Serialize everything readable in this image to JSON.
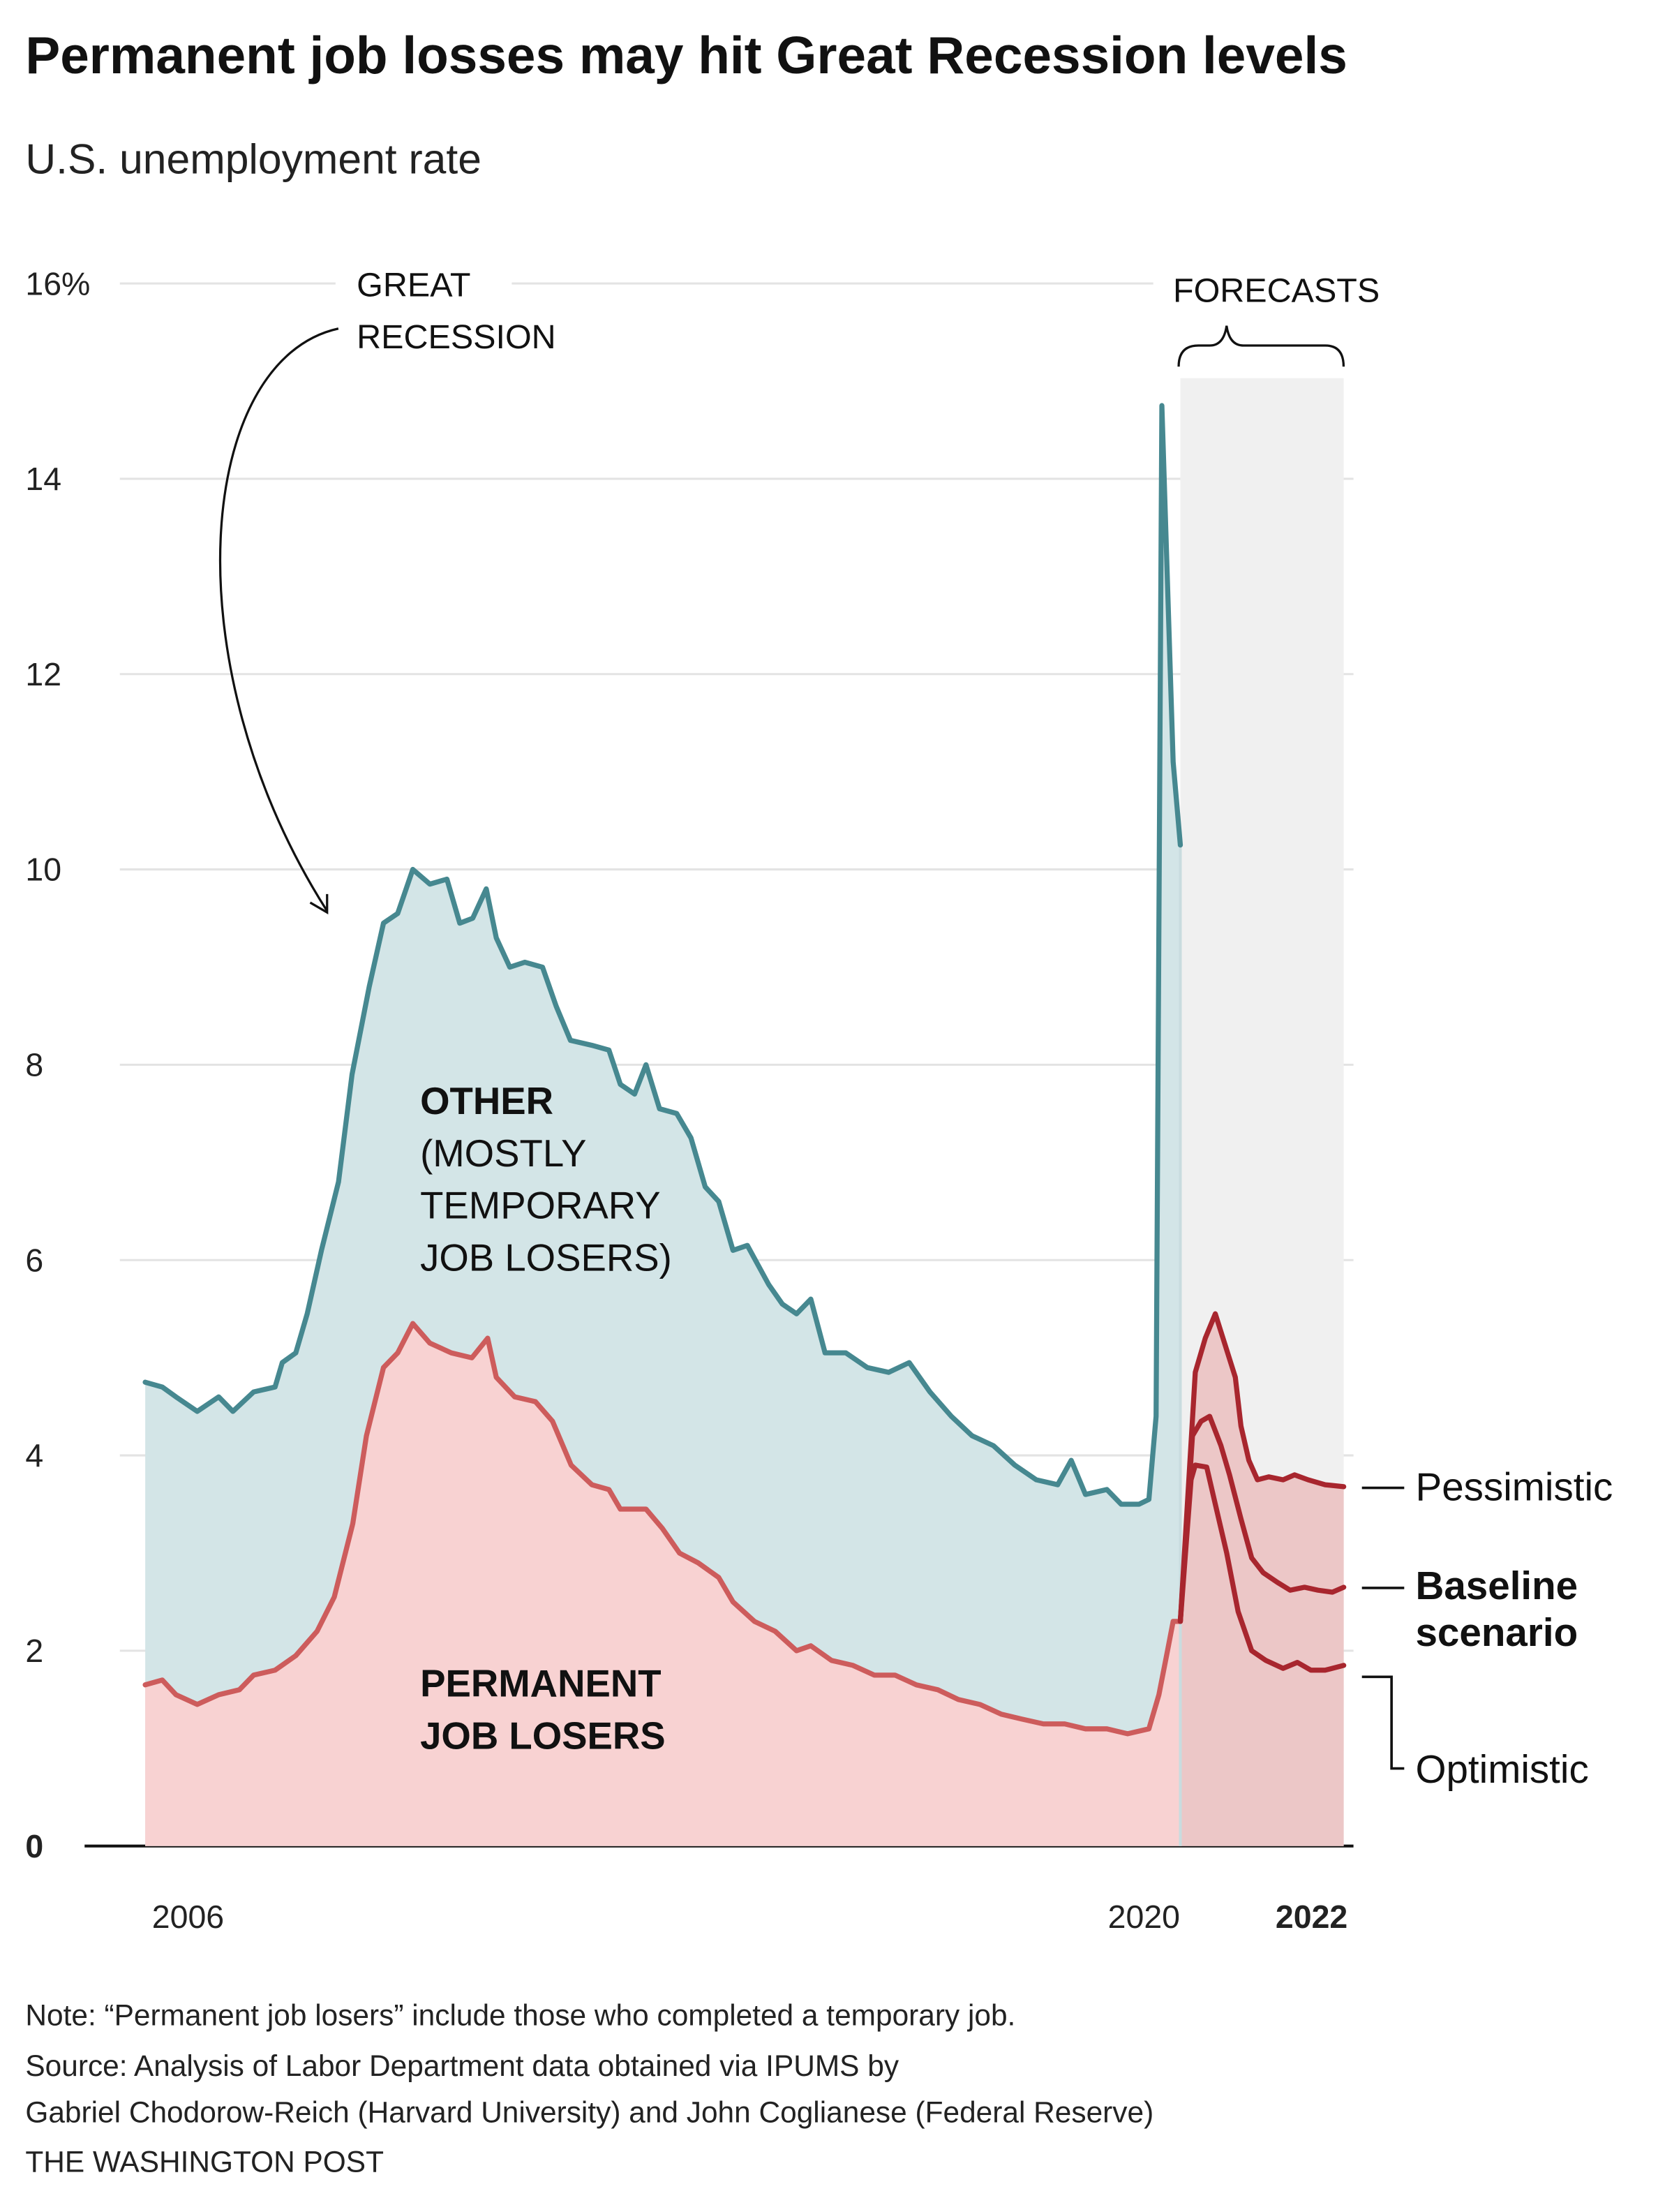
{
  "title": "Permanent job losses may hit Great Recession levels",
  "subtitle": "U.S. unemployment rate",
  "annotations": {
    "great_recession": [
      "GREAT",
      "RECESSION"
    ],
    "forecasts": "FORECASTS",
    "other": [
      "OTHER",
      "(MOSTLY",
      "TEMPORARY",
      "JOB LOSERS)"
    ],
    "permanent": [
      "PERMANENT",
      "JOB LOSERS"
    ],
    "pessimistic": "Pessimistic",
    "baseline": [
      "Baseline",
      "scenario"
    ],
    "optimistic": "Optimistic"
  },
  "notes": {
    "note": "Note: “Permanent job losers” include those who completed a temporary job.",
    "source_1": "Source: Analysis of Labor Department data obtained via IPUMS by",
    "source_2": "Gabriel Chodorow-Reich (Harvard University) and John Coglianese (Federal Reserve)",
    "credit": "THE WASHINGTON POST"
  },
  "colors": {
    "other_line": "#468890",
    "other_fill": "#d3e5e7",
    "permanent_line": "#cd5c5c",
    "permanent_fill": "#f8d2d2",
    "forecast_line": "#a8262e",
    "forecast_fill": "#ecc7c7",
    "forecast_band": "#f0f0f0"
  },
  "chart_data": {
    "type": "area",
    "title": "Permanent job losses may hit Great Recession levels",
    "ylabel": "U.S. unemployment rate (%)",
    "ylim": [
      0,
      16
    ],
    "xlim": [
      2006,
      2022.8
    ],
    "yticks": [
      "0",
      "2",
      "4",
      "6",
      "8",
      "10",
      "12",
      "14",
      "16%"
    ],
    "ytick_values": [
      0,
      2,
      4,
      6,
      8,
      10,
      12,
      14,
      16
    ],
    "xticks": [
      {
        "label": "2006",
        "year": 2006
      },
      {
        "label": "2020",
        "year": 2020
      },
      {
        "label": "2022",
        "year": 2022,
        "bold": true
      }
    ],
    "grid": true,
    "forecast_range": [
      2020.51,
      2022.8
    ],
    "series": [
      {
        "name": "Total (Other, mostly temporary job losers, stacked on top)",
        "points": [
          [
            2006.0,
            4.75
          ],
          [
            2006.24,
            4.7
          ],
          [
            2006.43,
            4.6
          ],
          [
            2006.73,
            4.45
          ],
          [
            2007.03,
            4.6
          ],
          [
            2007.23,
            4.45
          ],
          [
            2007.52,
            4.65
          ],
          [
            2007.82,
            4.7
          ],
          [
            2007.92,
            4.95
          ],
          [
            2008.11,
            5.05
          ],
          [
            2008.27,
            5.45
          ],
          [
            2008.47,
            6.1
          ],
          [
            2008.71,
            6.8
          ],
          [
            2008.9,
            7.9
          ],
          [
            2009.14,
            8.8
          ],
          [
            2009.34,
            9.45
          ],
          [
            2009.54,
            9.55
          ],
          [
            2009.75,
            10.0
          ],
          [
            2009.99,
            9.85
          ],
          [
            2010.23,
            9.9
          ],
          [
            2010.41,
            9.45
          ],
          [
            2010.59,
            9.5
          ],
          [
            2010.78,
            9.8
          ],
          [
            2010.92,
            9.3
          ],
          [
            2011.11,
            9.0
          ],
          [
            2011.32,
            9.05
          ],
          [
            2011.57,
            9.0
          ],
          [
            2011.76,
            8.6
          ],
          [
            2011.96,
            8.25
          ],
          [
            2012.26,
            8.2
          ],
          [
            2012.5,
            8.15
          ],
          [
            2012.66,
            7.8
          ],
          [
            2012.86,
            7.7
          ],
          [
            2013.02,
            8.0
          ],
          [
            2013.21,
            7.55
          ],
          [
            2013.45,
            7.5
          ],
          [
            2013.65,
            7.25
          ],
          [
            2013.85,
            6.75
          ],
          [
            2014.04,
            6.6
          ],
          [
            2014.24,
            6.1
          ],
          [
            2014.44,
            6.15
          ],
          [
            2014.74,
            5.75
          ],
          [
            2014.93,
            5.55
          ],
          [
            2015.13,
            5.45
          ],
          [
            2015.33,
            5.6
          ],
          [
            2015.53,
            5.05
          ],
          [
            2015.82,
            5.05
          ],
          [
            2016.12,
            4.9
          ],
          [
            2016.42,
            4.85
          ],
          [
            2016.71,
            4.95
          ],
          [
            2017.0,
            4.65
          ],
          [
            2017.3,
            4.4
          ],
          [
            2017.59,
            4.2
          ],
          [
            2017.89,
            4.1
          ],
          [
            2018.19,
            3.9
          ],
          [
            2018.49,
            3.75
          ],
          [
            2018.79,
            3.7
          ],
          [
            2018.98,
            3.95
          ],
          [
            2019.18,
            3.6
          ],
          [
            2019.48,
            3.65
          ],
          [
            2019.68,
            3.5
          ],
          [
            2019.93,
            3.5
          ],
          [
            2020.07,
            3.55
          ],
          [
            2020.17,
            4.4
          ],
          [
            2020.25,
            14.75
          ],
          [
            2020.41,
            11.1
          ],
          [
            2020.51,
            10.25
          ]
        ]
      },
      {
        "name": "Permanent job losers",
        "points": [
          [
            2006.0,
            1.65
          ],
          [
            2006.24,
            1.7
          ],
          [
            2006.43,
            1.55
          ],
          [
            2006.73,
            1.45
          ],
          [
            2007.03,
            1.55
          ],
          [
            2007.32,
            1.6
          ],
          [
            2007.52,
            1.75
          ],
          [
            2007.82,
            1.8
          ],
          [
            2008.11,
            1.95
          ],
          [
            2008.41,
            2.2
          ],
          [
            2008.65,
            2.55
          ],
          [
            2008.91,
            3.3
          ],
          [
            2009.1,
            4.2
          ],
          [
            2009.34,
            4.9
          ],
          [
            2009.54,
            5.05
          ],
          [
            2009.75,
            5.35
          ],
          [
            2009.99,
            5.15
          ],
          [
            2010.29,
            5.05
          ],
          [
            2010.58,
            5.0
          ],
          [
            2010.8,
            5.2
          ],
          [
            2010.92,
            4.8
          ],
          [
            2011.18,
            4.6
          ],
          [
            2011.47,
            4.55
          ],
          [
            2011.71,
            4.35
          ],
          [
            2011.97,
            3.9
          ],
          [
            2012.26,
            3.7
          ],
          [
            2012.5,
            3.65
          ],
          [
            2012.66,
            3.45
          ],
          [
            2013.02,
            3.45
          ],
          [
            2013.25,
            3.25
          ],
          [
            2013.49,
            3.0
          ],
          [
            2013.75,
            2.9
          ],
          [
            2014.04,
            2.75
          ],
          [
            2014.24,
            2.5
          ],
          [
            2014.54,
            2.3
          ],
          [
            2014.83,
            2.2
          ],
          [
            2015.13,
            2.0
          ],
          [
            2015.33,
            2.05
          ],
          [
            2015.62,
            1.9
          ],
          [
            2015.92,
            1.85
          ],
          [
            2016.22,
            1.75
          ],
          [
            2016.51,
            1.75
          ],
          [
            2016.81,
            1.65
          ],
          [
            2017.11,
            1.6
          ],
          [
            2017.4,
            1.5
          ],
          [
            2017.7,
            1.45
          ],
          [
            2018.0,
            1.35
          ],
          [
            2018.29,
            1.3
          ],
          [
            2018.59,
            1.25
          ],
          [
            2018.89,
            1.25
          ],
          [
            2019.18,
            1.2
          ],
          [
            2019.48,
            1.2
          ],
          [
            2019.77,
            1.15
          ],
          [
            2020.07,
            1.2
          ],
          [
            2020.21,
            1.55
          ],
          [
            2020.33,
            2.0
          ],
          [
            2020.41,
            2.3
          ],
          [
            2020.51,
            2.3
          ]
        ]
      },
      {
        "name": "Pessimistic",
        "forecast": true,
        "points": [
          [
            2020.51,
            2.3
          ],
          [
            2020.72,
            4.85
          ],
          [
            2020.86,
            5.2
          ],
          [
            2021.0,
            5.45
          ],
          [
            2021.28,
            4.8
          ],
          [
            2021.36,
            4.3
          ],
          [
            2021.47,
            3.95
          ],
          [
            2021.59,
            3.75
          ],
          [
            2021.75,
            3.78
          ],
          [
            2021.95,
            3.75
          ],
          [
            2022.11,
            3.8
          ],
          [
            2022.3,
            3.75
          ],
          [
            2022.54,
            3.7
          ],
          [
            2022.8,
            3.68
          ]
        ]
      },
      {
        "name": "Baseline scenario",
        "forecast": true,
        "points": [
          [
            2020.51,
            2.3
          ],
          [
            2020.68,
            4.2
          ],
          [
            2020.8,
            4.35
          ],
          [
            2020.92,
            4.4
          ],
          [
            2021.08,
            4.1
          ],
          [
            2021.2,
            3.8
          ],
          [
            2021.36,
            3.35
          ],
          [
            2021.51,
            2.95
          ],
          [
            2021.67,
            2.8
          ],
          [
            2021.87,
            2.7
          ],
          [
            2022.05,
            2.62
          ],
          [
            2022.25,
            2.65
          ],
          [
            2022.44,
            2.62
          ],
          [
            2022.64,
            2.6
          ],
          [
            2022.8,
            2.65
          ]
        ]
      },
      {
        "name": "Optimistic",
        "forecast": true,
        "points": [
          [
            2020.51,
            2.3
          ],
          [
            2020.66,
            3.75
          ],
          [
            2020.72,
            3.9
          ],
          [
            2020.88,
            3.88
          ],
          [
            2021.0,
            3.5
          ],
          [
            2021.16,
            3.0
          ],
          [
            2021.32,
            2.4
          ],
          [
            2021.51,
            2.0
          ],
          [
            2021.71,
            1.9
          ],
          [
            2021.95,
            1.82
          ],
          [
            2022.15,
            1.88
          ],
          [
            2022.34,
            1.8
          ],
          [
            2022.54,
            1.8
          ],
          [
            2022.8,
            1.85
          ]
        ]
      }
    ]
  }
}
